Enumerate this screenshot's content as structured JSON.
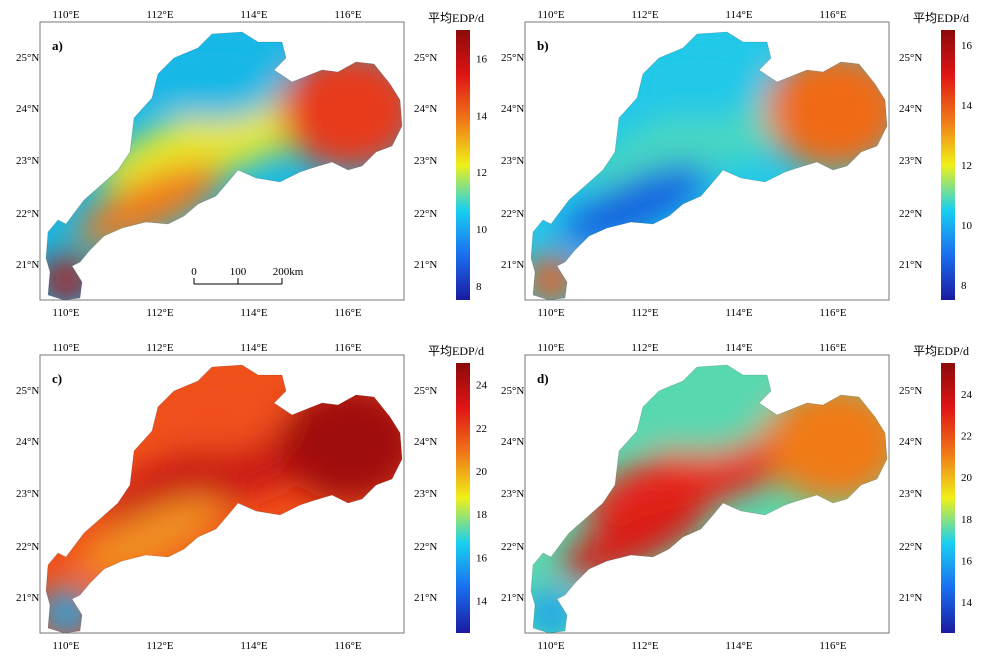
{
  "map_common": {
    "lon_ticks": [
      "110°E",
      "112°E",
      "114°E",
      "116°E"
    ],
    "lat_ticks": [
      "25°N",
      "24°N",
      "23°N",
      "22°N",
      "21°N"
    ],
    "colorbar_title": "平均EDP/d",
    "scale_bar": {
      "labels": [
        "0",
        "100",
        "200km"
      ]
    }
  },
  "panels": [
    {
      "label": "a)",
      "colorbar_ticks": [
        "16",
        "14",
        "12",
        "10",
        "8"
      ],
      "range": [
        7.5,
        17
      ],
      "colors": {
        "west_tip": "#b01414",
        "northwest": "#18b8e6",
        "center_band": "#e8e82a",
        "east": "#e83a1a",
        "southeast_coast": "#f07a1a"
      }
    },
    {
      "label": "b)",
      "colorbar_ticks": [
        "16",
        "14",
        "12",
        "10",
        "8"
      ],
      "range": [
        7.5,
        16.5
      ],
      "colors": {
        "west_tip": "#f05a14",
        "northwest": "#22c8e8",
        "center_band": "#48d8c0",
        "east": "#f06a18",
        "southeast_coast": "#1464e0"
      }
    },
    {
      "label": "c)",
      "colorbar_ticks": [
        "24",
        "22",
        "20",
        "18",
        "16",
        "14"
      ],
      "range": [
        12.5,
        25
      ],
      "colors": {
        "west_tip": "#18a8f0",
        "northwest": "#f0501a",
        "center_band": "#c81414",
        "east": "#a00c0c",
        "southeast_coast": "#f09020"
      }
    },
    {
      "label": "d)",
      "colorbar_ticks": [
        "24",
        "22",
        "20",
        "18",
        "16",
        "14"
      ],
      "range": [
        12.5,
        25.5
      ],
      "colors": {
        "west_tip": "#18a0f0",
        "northwest": "#58d8b0",
        "center_band": "#e8281a",
        "east": "#f07a18",
        "southeast_coast": "#d81a14"
      }
    }
  ]
}
